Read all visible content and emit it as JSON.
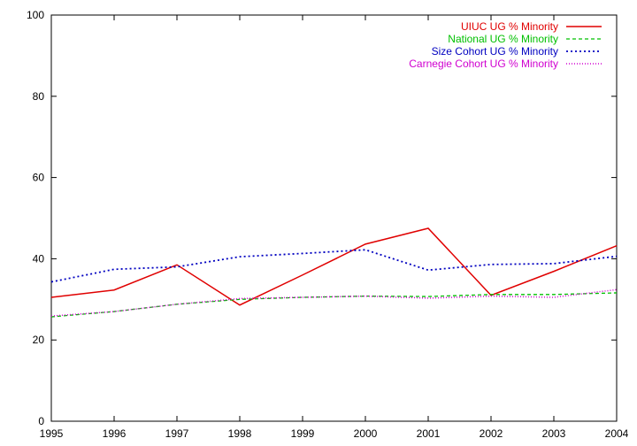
{
  "chart_data": {
    "type": "line",
    "title": "",
    "xlabel": "",
    "ylabel": "",
    "x": [
      1995,
      1996,
      1997,
      1998,
      1999,
      2000,
      2001,
      2002,
      2003,
      2004
    ],
    "x_ticks": [
      "1995",
      "1996",
      "1997",
      "1998",
      "1999",
      "2000",
      "2001",
      "2002",
      "2003",
      "2004"
    ],
    "xlim": [
      1995,
      2004
    ],
    "ylim": [
      0,
      100
    ],
    "y_ticks": [
      "0",
      "20",
      "40",
      "60",
      "80",
      "100"
    ],
    "grid": false,
    "legend_position": "top-right",
    "series": [
      {
        "name": "UIUC UG % Minority",
        "color": "#e00000",
        "dash": "solid",
        "values": [
          30.5,
          32.3,
          38.5,
          28.6,
          36.0,
          43.6,
          47.5,
          31.0,
          36.9,
          43.2
        ]
      },
      {
        "name": "National UG % Minority",
        "color": "#00c000",
        "dash": "dashed",
        "values": [
          25.7,
          27.0,
          28.8,
          30.0,
          30.5,
          30.8,
          30.7,
          31.2,
          31.2,
          31.6
        ]
      },
      {
        "name": "Size Cohort UG % Minority",
        "color": "#0000c0",
        "dash": "dotted",
        "values": [
          34.3,
          37.4,
          38.0,
          40.5,
          41.3,
          42.2,
          37.2,
          38.6,
          38.8,
          40.6
        ]
      },
      {
        "name": "Carnegie Cohort UG % Minority",
        "color": "#d000d0",
        "dash": "fine-dotted",
        "values": [
          25.9,
          27.0,
          28.8,
          30.2,
          30.5,
          30.8,
          30.3,
          30.8,
          30.5,
          32.4
        ]
      }
    ]
  }
}
